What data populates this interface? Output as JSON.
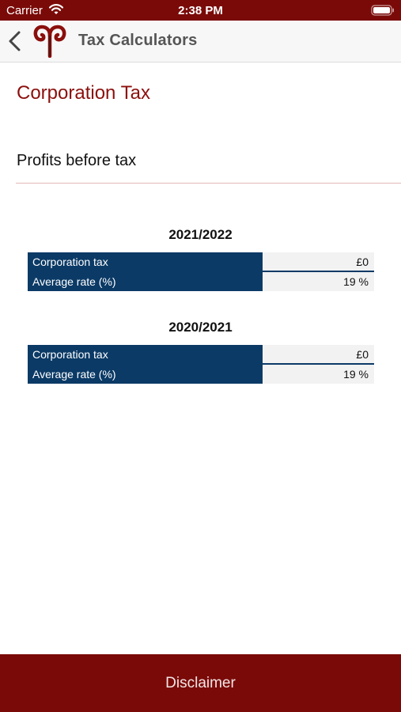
{
  "status_bar": {
    "carrier": "Carrier",
    "time": "2:38 PM",
    "icons": [
      "wifi-icon",
      "battery-icon"
    ]
  },
  "nav": {
    "title": "Tax Calculators",
    "back_icon": "chevron-left-icon",
    "logo_icon": "aries-logo-icon"
  },
  "page": {
    "title": "Corporation Tax",
    "profit_field_label": "Profits before tax"
  },
  "results": [
    {
      "year": "2021/2022",
      "rows": [
        {
          "label": "Corporation tax",
          "value": "£0"
        },
        {
          "label": "Average rate (%)",
          "value": "19 %"
        }
      ]
    },
    {
      "year": "2020/2021",
      "rows": [
        {
          "label": "Corporation tax",
          "value": "£0"
        },
        {
          "label": "Average rate (%)",
          "value": "19 %"
        }
      ]
    }
  ],
  "footer": {
    "disclaimer_label": "Disclaimer"
  },
  "colors": {
    "brand_red": "#7a0a08",
    "title_red": "#8b0f0c",
    "table_navy": "#0b3a66"
  }
}
